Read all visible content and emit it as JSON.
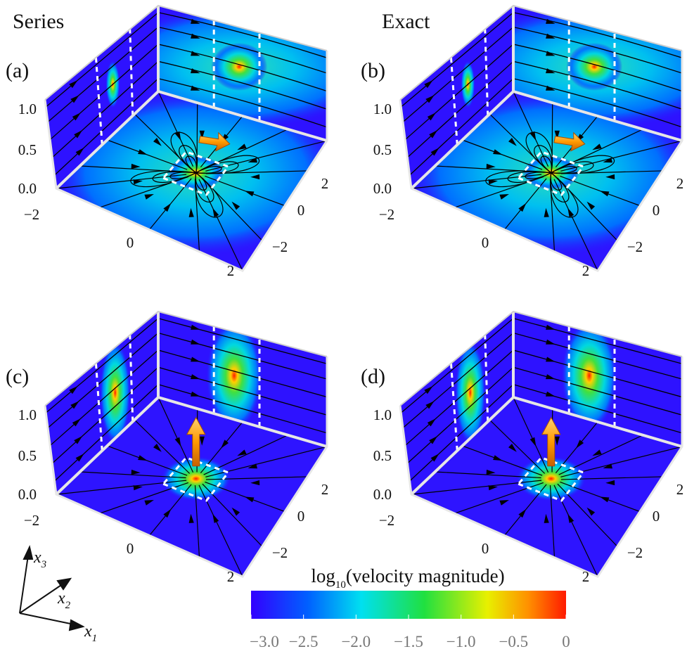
{
  "column_titles": [
    "Series",
    "Exact"
  ],
  "panels": [
    {
      "label": "(a)",
      "z_ticks": [
        "1.0",
        "0.5",
        "0.0"
      ],
      "x_ticks": [
        "−2",
        "0",
        "2"
      ],
      "y_ticks": [
        "2",
        "0",
        "−2"
      ]
    },
    {
      "label": "(b)",
      "z_ticks": [
        "1.0",
        "0.5",
        "0.0"
      ],
      "x_ticks": [
        "−2",
        "0",
        "2"
      ],
      "y_ticks": [
        "2",
        "0",
        "−2"
      ]
    },
    {
      "label": "(c)",
      "z_ticks": [
        "1.0",
        "0.5",
        "0.0"
      ],
      "x_ticks": [
        "−2",
        "0",
        "2"
      ],
      "y_ticks": [
        "2",
        "0",
        "−2"
      ]
    },
    {
      "label": "(d)",
      "z_ticks": [
        "1.0",
        "0.5",
        "0.0"
      ],
      "x_ticks": [
        "−2",
        "0",
        "2"
      ],
      "y_ticks": [
        "2",
        "0",
        "−2"
      ]
    }
  ],
  "axes_key": [
    {
      "symbol": "x",
      "subscript": "3"
    },
    {
      "symbol": "x",
      "subscript": "2"
    },
    {
      "symbol": "x",
      "subscript": "1"
    }
  ],
  "colorbar": {
    "title": {
      "main": "log",
      "subscript": "10",
      "rest": "(velocity magnitude)"
    },
    "lim": [
      -3,
      0
    ],
    "ticks": [
      {
        "value": -3,
        "label": "−3.0"
      },
      {
        "value": -2.5,
        "label": "−2.5"
      },
      {
        "value": -2,
        "label": "−2.0"
      },
      {
        "value": -1.5,
        "label": "−1.5"
      },
      {
        "value": -1,
        "label": "−1.0"
      },
      {
        "value": -0.5,
        "label": "−0.5"
      },
      0
    ]
  }
}
